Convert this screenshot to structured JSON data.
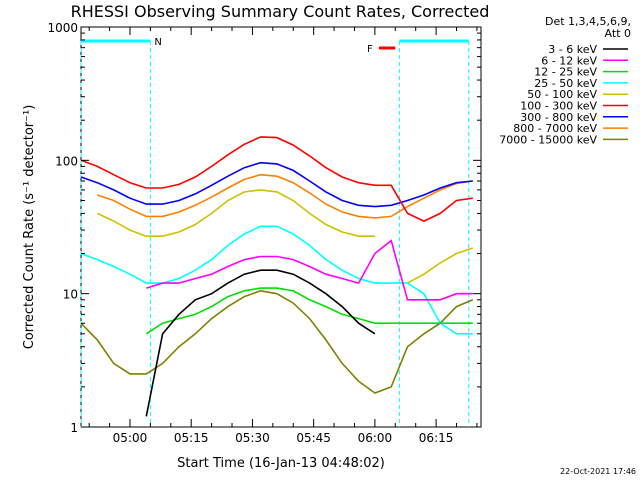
{
  "chart_data": {
    "type": "line",
    "title": "RHESSI Observing Summary Count Rates, Corrected",
    "xlabel": "Start Time (16-Jan-13 04:48:02)",
    "ylabel": "Corrected Count Rate (s⁻¹ detector⁻¹)",
    "yscale": "log",
    "ylim": [
      1,
      1000
    ],
    "xlim_minutes_after_start": [
      0,
      98
    ],
    "x_tick_labels": [
      "05:00",
      "05:15",
      "05:30",
      "05:45",
      "06:00",
      "06:15"
    ],
    "x_tick_minutes": [
      12,
      27,
      42,
      57,
      72,
      87
    ],
    "y_tick_labels": [
      "1",
      "10",
      "100",
      "1000"
    ],
    "y_tick_values": [
      1,
      10,
      100,
      1000
    ],
    "legend_header": [
      "Det 1,3,4,5,6,9,",
      "Att 0"
    ],
    "legend_placement": "right",
    "annotations": {
      "night_label": "N",
      "night_intervals_minutes": [
        [
          0,
          17
        ],
        [
          78,
          95
        ]
      ],
      "flare_label": "F",
      "flare_interval_minutes": [
        73,
        77
      ]
    },
    "footer_timestamp": "22-Oct-2021 17:46",
    "x_minutes": [
      0,
      4,
      8,
      12,
      16,
      20,
      24,
      28,
      32,
      36,
      40,
      44,
      48,
      52,
      56,
      60,
      64,
      68,
      72,
      76,
      80,
      84,
      88,
      92,
      96
    ],
    "series": [
      {
        "name": "3 - 6 keV",
        "color": "#000000",
        "values": [
          null,
          null,
          null,
          null,
          1.2,
          5,
          7,
          9,
          10,
          12,
          14,
          15,
          15,
          14,
          12,
          10,
          8,
          6,
          5,
          null,
          null,
          null,
          null,
          null,
          null
        ]
      },
      {
        "name": "6 - 12 keV",
        "color": "#ff00ff",
        "values": [
          null,
          null,
          null,
          null,
          11,
          12,
          12,
          13,
          14,
          16,
          18,
          19,
          19,
          18,
          16,
          14,
          13,
          12,
          20,
          25,
          9,
          9,
          9,
          10,
          10
        ]
      },
      {
        "name": "12 - 25 keV",
        "color": "#00e000",
        "values": [
          null,
          null,
          null,
          null,
          5,
          6,
          6.5,
          7,
          8,
          9.5,
          10.5,
          11,
          11,
          10.5,
          9,
          8,
          7,
          6.5,
          6,
          6,
          6,
          6,
          6,
          6,
          6
        ]
      },
      {
        "name": "25 - 50 keV",
        "color": "#00ffff",
        "values": [
          20,
          18,
          16,
          14,
          12,
          12,
          13,
          15,
          18,
          23,
          28,
          32,
          32,
          28,
          23,
          18,
          15,
          13,
          12,
          12,
          12,
          10,
          6,
          5,
          5
        ]
      },
      {
        "name": "50 - 100 keV",
        "color": "#d0c000",
        "values": [
          null,
          40,
          35,
          30,
          27,
          27,
          29,
          33,
          40,
          50,
          58,
          60,
          58,
          50,
          40,
          33,
          29,
          27,
          27,
          null,
          12,
          14,
          17,
          20,
          22
        ]
      },
      {
        "name": "100 - 300 keV",
        "color": "#ff0000",
        "values": [
          100,
          90,
          78,
          68,
          62,
          62,
          66,
          75,
          90,
          110,
          132,
          150,
          148,
          130,
          108,
          88,
          75,
          68,
          65,
          65,
          40,
          35,
          40,
          50,
          52
        ]
      },
      {
        "name": "300 - 800 keV",
        "color": "#0000ff",
        "values": [
          75,
          68,
          60,
          52,
          47,
          47,
          50,
          56,
          65,
          76,
          88,
          96,
          94,
          84,
          70,
          58,
          50,
          46,
          45,
          46,
          50,
          55,
          62,
          68,
          70
        ]
      },
      {
        "name": "800 - 7000 keV",
        "color": "#ff8000",
        "values": [
          null,
          55,
          50,
          43,
          38,
          38,
          41,
          46,
          53,
          62,
          72,
          78,
          76,
          68,
          57,
          47,
          41,
          38,
          37,
          38,
          45,
          52,
          60,
          67,
          70
        ]
      },
      {
        "name": "7000 - 15000 keV",
        "color": "#808000",
        "values": [
          6,
          4.5,
          3,
          2.5,
          2.5,
          3,
          4,
          5,
          6.5,
          8,
          9.5,
          10.5,
          10,
          8.5,
          6.5,
          4.5,
          3,
          2.2,
          1.8,
          2,
          4,
          5,
          6,
          8,
          9
        ]
      }
    ]
  }
}
